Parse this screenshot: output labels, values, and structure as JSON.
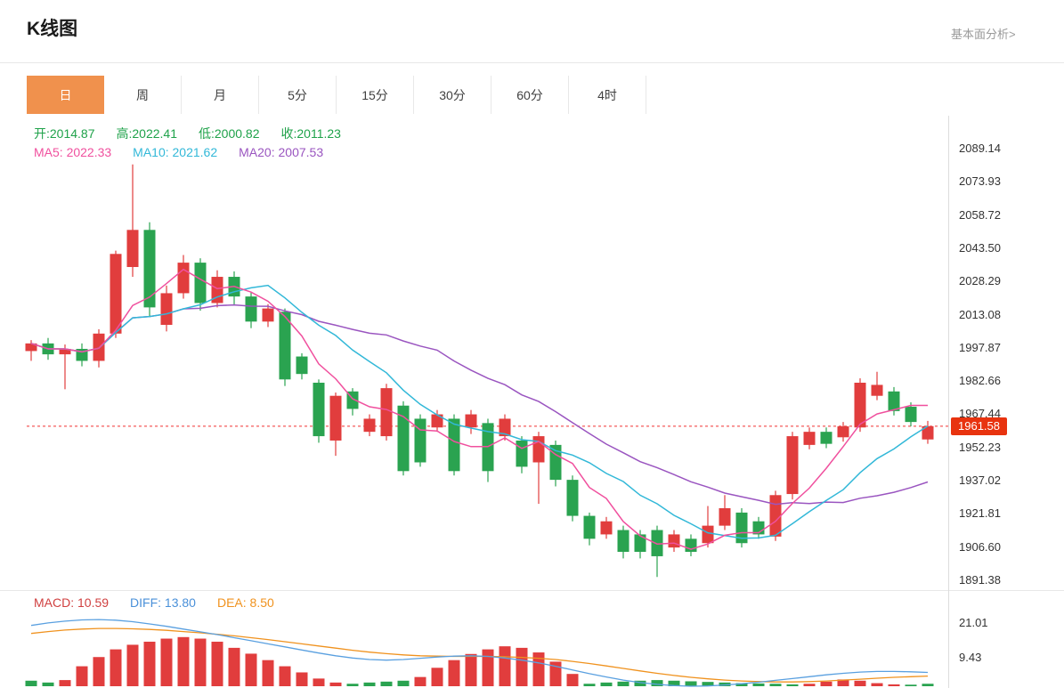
{
  "header": {
    "title": "K线图",
    "link": "基本面分析>"
  },
  "tabs": {
    "items": [
      "日",
      "周",
      "月",
      "5分",
      "15分",
      "30分",
      "60分",
      "4时"
    ],
    "active": "日"
  },
  "ohlc_legend": {
    "open": "开:2014.87",
    "high": "高:2022.41",
    "low": "低:2000.82",
    "close": "收:2011.23"
  },
  "ma_legend": {
    "ma5": "MA5: 2022.33",
    "ma10": "MA10: 2021.62",
    "ma20": "MA20: 2007.53"
  },
  "macd_legend": {
    "macd": "MACD: 10.59",
    "diff": "DIFF: 13.80",
    "dea": "DEA: 8.50"
  },
  "price_tag": "1961.58",
  "y_axis_labels": [
    "2089.14",
    "2073.93",
    "2058.72",
    "2043.50",
    "2028.29",
    "2013.08",
    "1997.87",
    "1982.66",
    "1967.44",
    "1952.23",
    "1937.02",
    "1921.81",
    "1906.60",
    "1891.38"
  ],
  "macd_axis_labels": [
    "21.01",
    "9.43"
  ],
  "colors": {
    "up": "#e13d3d",
    "down": "#2aa350",
    "ma5": "#f0509e",
    "ma10": "#32b8d8",
    "ma20": "#9a55c0",
    "ohlc_text": "#1fa24a",
    "tag_bg": "#e8330f",
    "tab_active_bg": "#f0914d",
    "macd_text": "#d04040",
    "diff_text": "#4a90d9",
    "dea_text": "#f0921e",
    "diff_line": "#5aa0e0",
    "dea_line": "#f0921e",
    "price_line": "#f23030",
    "axis_line": "#dddddd"
  },
  "chart_data": {
    "type": "candlestick",
    "title": "K线图",
    "interval": "日",
    "price_axis": {
      "min": 1891.38,
      "max": 2089.14,
      "ticks": [
        2089.14,
        2073.93,
        2058.72,
        2043.5,
        2028.29,
        2013.08,
        1997.87,
        1982.66,
        1967.44,
        1952.23,
        1937.02,
        1921.81,
        1906.6,
        1891.38
      ]
    },
    "current_price": 1961.58,
    "hovered_values": {
      "open": 2014.87,
      "high": 2022.41,
      "low": 2000.82,
      "close": 2011.23,
      "ma5": 2022.33,
      "ma10": 2021.62,
      "ma20": 2007.53
    },
    "candles": [
      [
        1996.0,
        2001.0,
        1991.5,
        1999.5
      ],
      [
        1999.5,
        2002.0,
        1992.0,
        1994.5
      ],
      [
        1994.5,
        1999.0,
        1978.5,
        1997.0
      ],
      [
        1997.0,
        1999.5,
        1989.0,
        1991.5
      ],
      [
        1991.5,
        2006.0,
        1988.5,
        2004.0
      ],
      [
        2004.0,
        2042.0,
        2002.0,
        2040.5
      ],
      [
        2034.5,
        2081.5,
        2030.0,
        2051.5
      ],
      [
        2051.5,
        2055.0,
        2012.0,
        2016.0
      ],
      [
        2008.0,
        2026.0,
        2005.0,
        2022.5
      ],
      [
        2022.5,
        2040.0,
        2020.0,
        2036.5
      ],
      [
        2036.5,
        2038.5,
        2014.5,
        2018.0
      ],
      [
        2018.0,
        2033.0,
        2016.0,
        2030.0
      ],
      [
        2030.0,
        2032.5,
        2017.0,
        2021.0
      ],
      [
        2021.0,
        2023.0,
        2006.5,
        2009.5
      ],
      [
        2009.5,
        2017.5,
        2007.0,
        2015.5
      ],
      [
        2014.0,
        2015.5,
        1980.0,
        1983.0
      ],
      [
        1993.5,
        1995.0,
        1983.0,
        1985.5
      ],
      [
        1981.5,
        1983.0,
        1954.0,
        1957.0
      ],
      [
        1955.0,
        1977.0,
        1948.0,
        1975.5
      ],
      [
        1977.5,
        1979.0,
        1966.5,
        1969.5
      ],
      [
        1959.0,
        1967.0,
        1957.0,
        1965.0
      ],
      [
        1957.0,
        1981.0,
        1955.0,
        1979.0
      ],
      [
        1971.0,
        1973.0,
        1939.0,
        1941.0
      ],
      [
        1965.0,
        1967.0,
        1943.0,
        1945.0
      ],
      [
        1961.0,
        1969.0,
        1959.0,
        1967.0
      ],
      [
        1965.0,
        1967.0,
        1939.0,
        1941.0
      ],
      [
        1961.0,
        1969.0,
        1958.0,
        1967.0
      ],
      [
        1963.0,
        1965.0,
        1936.0,
        1941.0
      ],
      [
        1957.0,
        1967.0,
        1955.0,
        1965.0
      ],
      [
        1955.0,
        1957.0,
        1940.0,
        1943.0
      ],
      [
        1945.0,
        1959.0,
        1926.0,
        1957.0
      ],
      [
        1953.0,
        1955.0,
        1934.0,
        1937.0
      ],
      [
        1937.0,
        1939.0,
        1918.0,
        1920.5
      ],
      [
        1920.5,
        1922.0,
        1907.0,
        1910.0
      ],
      [
        1912.0,
        1920.0,
        1910.0,
        1918.0
      ],
      [
        1914.0,
        1916.0,
        1901.0,
        1904.0
      ],
      [
        1912.0,
        1914.0,
        1901.0,
        1904.0
      ],
      [
        1914.0,
        1916.0,
        1892.5,
        1902.0
      ],
      [
        1906.0,
        1914.0,
        1904.0,
        1912.0
      ],
      [
        1910.0,
        1912.0,
        1902.0,
        1904.0
      ],
      [
        1908.0,
        1925.0,
        1906.0,
        1916.0
      ],
      [
        1916.0,
        1930.0,
        1914.0,
        1924.0
      ],
      [
        1922.0,
        1924.0,
        1906.0,
        1908.0
      ],
      [
        1918.0,
        1920.0,
        1910.0,
        1912.0
      ],
      [
        1911.0,
        1932.0,
        1909.0,
        1930.0
      ],
      [
        1930.5,
        1959.0,
        1928.0,
        1957.0
      ],
      [
        1953.0,
        1961.0,
        1951.0,
        1959.0
      ],
      [
        1959.0,
        1961.0,
        1951.5,
        1953.5
      ],
      [
        1956.5,
        1963.5,
        1954.5,
        1961.5
      ],
      [
        1961.0,
        1983.5,
        1959.0,
        1981.5
      ],
      [
        1975.5,
        1986.5,
        1973.5,
        1980.5
      ],
      [
        1977.5,
        1979.5,
        1966.5,
        1968.5
      ],
      [
        1970.5,
        1972.5,
        1961.5,
        1963.5
      ],
      [
        1955.5,
        1964.0,
        1953.5,
        1961.58
      ]
    ],
    "macd": {
      "values": {
        "macd": 10.59,
        "diff": 13.8,
        "dea": 8.5
      },
      "axis_ticks": [
        21.01,
        9.43
      ],
      "histogram": [
        -1.8,
        -1.2,
        2.0,
        6.5,
        9.5,
        12.0,
        13.5,
        14.5,
        15.5,
        16.0,
        15.5,
        14.5,
        12.5,
        10.6,
        8.5,
        6.5,
        4.5,
        2.5,
        1.2,
        -0.8,
        -1.2,
        -1.5,
        -1.8,
        3.0,
        6.0,
        8.5,
        10.5,
        12.0,
        13.0,
        12.5,
        11.0,
        8.0,
        4.0,
        -0.8,
        -1.2,
        -1.5,
        -1.8,
        -2.0,
        -1.8,
        -1.6,
        -1.4,
        -1.2,
        -1.0,
        -0.9,
        -0.8,
        -0.6,
        0.8,
        1.5,
        2.2,
        1.8,
        1.0,
        0.6,
        -0.5,
        -0.8
      ],
      "diff": [
        19.8,
        20.6,
        21.2,
        21.6,
        21.7,
        21.5,
        21.0,
        20.3,
        19.5,
        18.6,
        17.7,
        16.8,
        15.8,
        14.8,
        13.8,
        12.8,
        11.8,
        10.8,
        9.9,
        9.2,
        8.7,
        8.5,
        8.7,
        9.1,
        9.5,
        9.8,
        9.9,
        9.7,
        9.2,
        8.5,
        7.6,
        6.5,
        5.3,
        4.1,
        3.0,
        2.0,
        1.2,
        0.6,
        0.2,
        0.0,
        0.1,
        0.4,
        0.8,
        1.3,
        1.9,
        2.5,
        3.1,
        3.7,
        4.2,
        4.6,
        4.8,
        4.8,
        4.7,
        4.5
      ],
      "dea": [
        17.2,
        17.8,
        18.3,
        18.6,
        18.8,
        18.8,
        18.7,
        18.5,
        18.2,
        17.8,
        17.4,
        16.9,
        16.4,
        15.8,
        15.2,
        14.5,
        13.8,
        13.1,
        12.4,
        11.7,
        11.1,
        10.6,
        10.2,
        9.9,
        9.8,
        9.7,
        9.7,
        9.7,
        9.6,
        9.4,
        9.1,
        8.7,
        8.1,
        7.4,
        6.6,
        5.8,
        5.0,
        4.2,
        3.5,
        2.9,
        2.4,
        2.0,
        1.7,
        1.5,
        1.4,
        1.4,
        1.5,
        1.7,
        2.0,
        2.3,
        2.6,
        2.9,
        3.1,
        3.3
      ]
    }
  }
}
